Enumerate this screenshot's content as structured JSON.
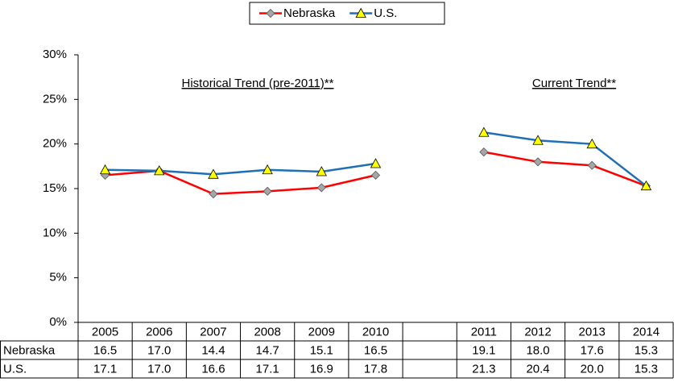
{
  "chart_data": {
    "type": "line",
    "annotations": [
      "Historical Trend (pre-2011)**",
      "Current Trend**"
    ],
    "categories": [
      "2005",
      "2006",
      "2007",
      "2008",
      "2009",
      "2010",
      null,
      "2011",
      "2012",
      "2013",
      "2014"
    ],
    "series": [
      {
        "name": "Nebraska",
        "color": "#ff0000",
        "marker_color": "#a6a6a6",
        "values": [
          16.5,
          17.0,
          14.4,
          14.7,
          15.1,
          16.5,
          null,
          19.1,
          18.0,
          17.6,
          15.3
        ],
        "value_labels": [
          "16.5",
          "17.0",
          "14.4",
          "14.7",
          "15.1",
          "16.5",
          null,
          "19.1",
          "18.0",
          "17.6",
          "15.3"
        ]
      },
      {
        "name": "U.S.",
        "color": "#1f6fb4",
        "marker_color": "#ffff00",
        "values": [
          17.1,
          17.0,
          16.6,
          17.1,
          16.9,
          17.8,
          null,
          21.3,
          20.4,
          20.0,
          15.3
        ],
        "value_labels": [
          "17.1",
          "17.0",
          "16.6",
          "17.1",
          "16.9",
          "17.8",
          null,
          "21.3",
          "20.4",
          "20.0",
          "15.3"
        ]
      }
    ],
    "ylim": [
      0,
      30
    ],
    "yticks": [
      {
        "value": 0,
        "label": "0%"
      },
      {
        "value": 5,
        "label": "5%"
      },
      {
        "value": 10,
        "label": "10%"
      },
      {
        "value": 15,
        "label": "15%"
      },
      {
        "value": 20,
        "label": "20%"
      },
      {
        "value": 25,
        "label": "25%"
      },
      {
        "value": 30,
        "label": "30%"
      }
    ],
    "legend": "top"
  }
}
